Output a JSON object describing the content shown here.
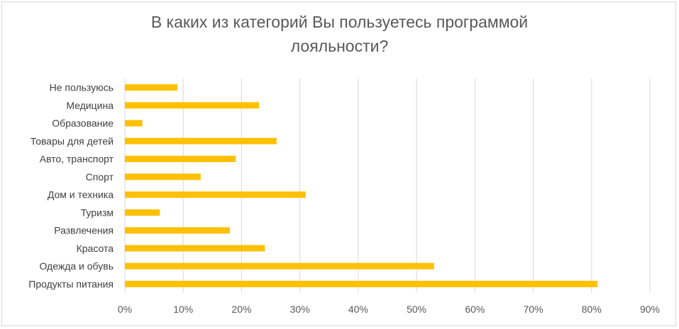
{
  "chart_data": {
    "type": "bar",
    "orientation": "horizontal",
    "title": "В каких из категорий Вы пользуетесь программой лояльности?",
    "title_lines": [
      "В каких из категорий Вы пользуетесь программой",
      "лояльности?"
    ],
    "categories": [
      "Не пользуюсь",
      "Медицина",
      "Образование",
      "Товары для детей",
      "Авто, транспорт",
      "Спорт",
      "Дом и техника",
      "Туризм",
      "Развлечения",
      "Красота",
      "Одежда и обувь",
      "Продукты питания"
    ],
    "values": [
      9,
      23,
      3,
      26,
      19,
      13,
      31,
      6,
      18,
      24,
      53,
      81
    ],
    "xlim": [
      0,
      90
    ],
    "xticks": [
      "0%",
      "10%",
      "20%",
      "30%",
      "40%",
      "50%",
      "60%",
      "70%",
      "80%",
      "90%"
    ],
    "xtick_values": [
      0,
      10,
      20,
      30,
      40,
      50,
      60,
      70,
      80,
      90
    ],
    "grid": "vertical",
    "legend": "none",
    "bar_color": "#FFC000",
    "grid_color": "#d9d9d9"
  }
}
